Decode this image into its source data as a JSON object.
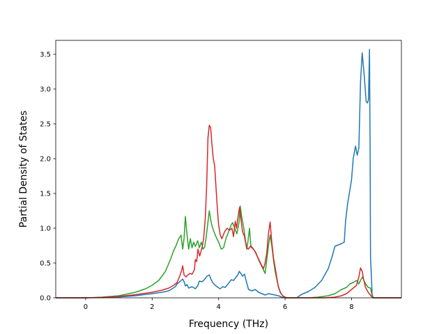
{
  "chart_data": {
    "type": "line",
    "title": "",
    "xlabel": "Frequency (THz)",
    "ylabel": "Partial Density of States",
    "xlim": [
      -0.9,
      9.5
    ],
    "ylim": [
      0,
      3.7
    ],
    "xticks": [
      0,
      2,
      4,
      6,
      8
    ],
    "xtick_labels": [
      "0",
      "2",
      "4",
      "6",
      "8"
    ],
    "yticks": [
      0.0,
      0.5,
      1.0,
      1.5,
      2.0,
      2.5,
      3.0,
      3.5
    ],
    "ytick_labels": [
      "0.0",
      "0.5",
      "1.0",
      "1.5",
      "2.0",
      "2.5",
      "3.0",
      "3.5"
    ],
    "grid": false,
    "legend": "none",
    "series": [
      {
        "color": "#1f77b4",
        "points": [
          [
            -0.9,
            0
          ],
          [
            0.0,
            0.0
          ],
          [
            0.5,
            0.004
          ],
          [
            1.0,
            0.012
          ],
          [
            1.5,
            0.03
          ],
          [
            2.0,
            0.06
          ],
          [
            2.3,
            0.08
          ],
          [
            2.5,
            0.1
          ],
          [
            2.6,
            0.13
          ],
          [
            2.7,
            0.16
          ],
          [
            2.75,
            0.2
          ],
          [
            2.85,
            0.24
          ],
          [
            2.92,
            0.27
          ],
          [
            2.97,
            0.22
          ],
          [
            3.0,
            0.17
          ],
          [
            3.05,
            0.19
          ],
          [
            3.1,
            0.14
          ],
          [
            3.2,
            0.16
          ],
          [
            3.3,
            0.13
          ],
          [
            3.38,
            0.18
          ],
          [
            3.42,
            0.24
          ],
          [
            3.5,
            0.23
          ],
          [
            3.57,
            0.26
          ],
          [
            3.65,
            0.31
          ],
          [
            3.72,
            0.33
          ],
          [
            3.76,
            0.28
          ],
          [
            3.82,
            0.22
          ],
          [
            3.9,
            0.18
          ],
          [
            3.98,
            0.15
          ],
          [
            4.05,
            0.13
          ],
          [
            4.12,
            0.16
          ],
          [
            4.2,
            0.15
          ],
          [
            4.3,
            0.21
          ],
          [
            4.38,
            0.26
          ],
          [
            4.45,
            0.25
          ],
          [
            4.5,
            0.28
          ],
          [
            4.58,
            0.33
          ],
          [
            4.62,
            0.38
          ],
          [
            4.67,
            0.35
          ],
          [
            4.72,
            0.31
          ],
          [
            4.78,
            0.34
          ],
          [
            4.82,
            0.26
          ],
          [
            4.9,
            0.12
          ],
          [
            5.0,
            0.1
          ],
          [
            5.1,
            0.12
          ],
          [
            5.2,
            0.08
          ],
          [
            5.3,
            0.06
          ],
          [
            5.4,
            0.04
          ],
          [
            5.5,
            0.06
          ],
          [
            5.6,
            0.05
          ],
          [
            5.7,
            0.04
          ],
          [
            5.8,
            0.03
          ],
          [
            5.9,
            0.01
          ],
          [
            6.0,
            0.0
          ],
          [
            6.35,
            0.0
          ],
          [
            6.5,
            0.05
          ],
          [
            6.7,
            0.09
          ],
          [
            6.9,
            0.15
          ],
          [
            7.1,
            0.25
          ],
          [
            7.3,
            0.42
          ],
          [
            7.42,
            0.6
          ],
          [
            7.5,
            0.74
          ],
          [
            7.6,
            0.76
          ],
          [
            7.7,
            0.78
          ],
          [
            7.78,
            0.8
          ],
          [
            7.82,
            1.1
          ],
          [
            7.88,
            1.35
          ],
          [
            7.95,
            1.55
          ],
          [
            8.0,
            1.7
          ],
          [
            8.05,
            2.0
          ],
          [
            8.12,
            2.18
          ],
          [
            8.17,
            2.05
          ],
          [
            8.22,
            2.15
          ],
          [
            8.27,
            3.1
          ],
          [
            8.32,
            3.52
          ],
          [
            8.38,
            3.2
          ],
          [
            8.44,
            2.82
          ],
          [
            8.48,
            2.8
          ],
          [
            8.51,
            2.85
          ],
          [
            8.54,
            3.57
          ],
          [
            8.56,
            2.0
          ],
          [
            8.57,
            0.6
          ],
          [
            8.62,
            0.05
          ],
          [
            8.65,
            0.0
          ],
          [
            9.5,
            0.0
          ]
        ]
      },
      {
        "color": "#2ca02c",
        "points": [
          [
            -0.9,
            0
          ],
          [
            0.0,
            0.0
          ],
          [
            0.5,
            0.01
          ],
          [
            1.0,
            0.03
          ],
          [
            1.5,
            0.08
          ],
          [
            1.8,
            0.13
          ],
          [
            2.0,
            0.18
          ],
          [
            2.2,
            0.25
          ],
          [
            2.4,
            0.38
          ],
          [
            2.55,
            0.55
          ],
          [
            2.65,
            0.68
          ],
          [
            2.72,
            0.75
          ],
          [
            2.8,
            0.85
          ],
          [
            2.87,
            0.9
          ],
          [
            2.92,
            0.7
          ],
          [
            2.96,
            0.85
          ],
          [
            3.0,
            1.17
          ],
          [
            3.04,
            0.95
          ],
          [
            3.1,
            0.7
          ],
          [
            3.15,
            0.85
          ],
          [
            3.2,
            0.72
          ],
          [
            3.25,
            0.8
          ],
          [
            3.3,
            0.74
          ],
          [
            3.37,
            0.82
          ],
          [
            3.42,
            0.72
          ],
          [
            3.48,
            0.8
          ],
          [
            3.53,
            0.7
          ],
          [
            3.58,
            0.73
          ],
          [
            3.62,
            0.85
          ],
          [
            3.67,
            1.05
          ],
          [
            3.72,
            1.25
          ],
          [
            3.77,
            1.1
          ],
          [
            3.82,
            1.0
          ],
          [
            3.9,
            0.9
          ],
          [
            4.0,
            0.8
          ],
          [
            4.08,
            0.7
          ],
          [
            4.15,
            0.72
          ],
          [
            4.22,
            0.85
          ],
          [
            4.3,
            0.95
          ],
          [
            4.38,
            1.05
          ],
          [
            4.42,
            1.08
          ],
          [
            4.5,
            0.98
          ],
          [
            4.55,
            0.92
          ],
          [
            4.62,
            1.1
          ],
          [
            4.65,
            1.32
          ],
          [
            4.7,
            1.15
          ],
          [
            4.76,
            1.0
          ],
          [
            4.8,
            0.85
          ],
          [
            4.85,
            0.7
          ],
          [
            4.88,
            0.8
          ],
          [
            4.93,
            1.0
          ],
          [
            4.97,
            0.75
          ],
          [
            5.05,
            0.7
          ],
          [
            5.12,
            0.65
          ],
          [
            5.2,
            0.55
          ],
          [
            5.3,
            0.45
          ],
          [
            5.4,
            0.35
          ],
          [
            5.45,
            0.55
          ],
          [
            5.5,
            0.75
          ],
          [
            5.55,
            0.9
          ],
          [
            5.6,
            0.75
          ],
          [
            5.65,
            0.55
          ],
          [
            5.7,
            0.38
          ],
          [
            5.78,
            0.2
          ],
          [
            5.85,
            0.08
          ],
          [
            5.95,
            0.02
          ],
          [
            6.05,
            0.0
          ],
          [
            6.7,
            0.0
          ],
          [
            7.0,
            0.01
          ],
          [
            7.3,
            0.03
          ],
          [
            7.5,
            0.06
          ],
          [
            7.7,
            0.12
          ],
          [
            7.85,
            0.15
          ],
          [
            7.95,
            0.2
          ],
          [
            8.05,
            0.22
          ],
          [
            8.15,
            0.25
          ],
          [
            8.22,
            0.2
          ],
          [
            8.28,
            0.26
          ],
          [
            8.33,
            0.3
          ],
          [
            8.38,
            0.24
          ],
          [
            8.45,
            0.18
          ],
          [
            8.5,
            0.15
          ],
          [
            8.57,
            0.14
          ],
          [
            8.62,
            0.03
          ],
          [
            8.66,
            0.0
          ],
          [
            9.5,
            0.0
          ]
        ]
      },
      {
        "color": "#d62728",
        "points": [
          [
            -0.9,
            0
          ],
          [
            0.0,
            0.0
          ],
          [
            0.5,
            0.005
          ],
          [
            1.0,
            0.02
          ],
          [
            1.5,
            0.045
          ],
          [
            2.0,
            0.08
          ],
          [
            2.3,
            0.11
          ],
          [
            2.5,
            0.14
          ],
          [
            2.65,
            0.18
          ],
          [
            2.75,
            0.22
          ],
          [
            2.82,
            0.3
          ],
          [
            2.88,
            0.38
          ],
          [
            2.92,
            0.46
          ],
          [
            2.96,
            0.33
          ],
          [
            3.02,
            0.3
          ],
          [
            3.08,
            0.33
          ],
          [
            3.14,
            0.35
          ],
          [
            3.2,
            0.34
          ],
          [
            3.27,
            0.4
          ],
          [
            3.3,
            0.55
          ],
          [
            3.34,
            0.52
          ],
          [
            3.38,
            0.7
          ],
          [
            3.43,
            0.6
          ],
          [
            3.5,
            0.72
          ],
          [
            3.55,
            0.85
          ],
          [
            3.6,
            1.15
          ],
          [
            3.64,
            1.6
          ],
          [
            3.68,
            2.3
          ],
          [
            3.72,
            2.48
          ],
          [
            3.76,
            2.45
          ],
          [
            3.8,
            2.2
          ],
          [
            3.84,
            2.0
          ],
          [
            3.88,
            1.9
          ],
          [
            3.92,
            1.6
          ],
          [
            3.96,
            1.3
          ],
          [
            4.0,
            1.05
          ],
          [
            4.05,
            0.9
          ],
          [
            4.1,
            0.85
          ],
          [
            4.18,
            0.95
          ],
          [
            4.26,
            1.0
          ],
          [
            4.33,
            0.97
          ],
          [
            4.4,
            1.0
          ],
          [
            4.45,
            0.88
          ],
          [
            4.5,
            1.1
          ],
          [
            4.54,
            1.0
          ],
          [
            4.58,
            1.15
          ],
          [
            4.63,
            1.3
          ],
          [
            4.68,
            1.1
          ],
          [
            4.72,
            0.95
          ],
          [
            4.78,
            0.88
          ],
          [
            4.84,
            0.72
          ],
          [
            4.9,
            0.7
          ],
          [
            4.95,
            0.74
          ],
          [
            5.0,
            0.72
          ],
          [
            5.08,
            0.68
          ],
          [
            5.18,
            0.58
          ],
          [
            5.28,
            0.48
          ],
          [
            5.35,
            0.42
          ],
          [
            5.4,
            0.5
          ],
          [
            5.45,
            0.65
          ],
          [
            5.5,
            0.92
          ],
          [
            5.55,
            1.09
          ],
          [
            5.6,
            0.8
          ],
          [
            5.65,
            0.58
          ],
          [
            5.72,
            0.38
          ],
          [
            5.8,
            0.15
          ],
          [
            5.88,
            0.06
          ],
          [
            5.95,
            0.02
          ],
          [
            6.05,
            0.0
          ],
          [
            7.2,
            0.0
          ],
          [
            7.5,
            0.01
          ],
          [
            7.7,
            0.03
          ],
          [
            7.85,
            0.06
          ],
          [
            7.95,
            0.1
          ],
          [
            8.05,
            0.14
          ],
          [
            8.15,
            0.18
          ],
          [
            8.22,
            0.3
          ],
          [
            8.27,
            0.43
          ],
          [
            8.32,
            0.38
          ],
          [
            8.37,
            0.25
          ],
          [
            8.42,
            0.15
          ],
          [
            8.5,
            0.08
          ],
          [
            8.55,
            0.05
          ],
          [
            8.6,
            0.02
          ],
          [
            8.65,
            0.0
          ],
          [
            9.5,
            0.0
          ]
        ]
      }
    ]
  }
}
